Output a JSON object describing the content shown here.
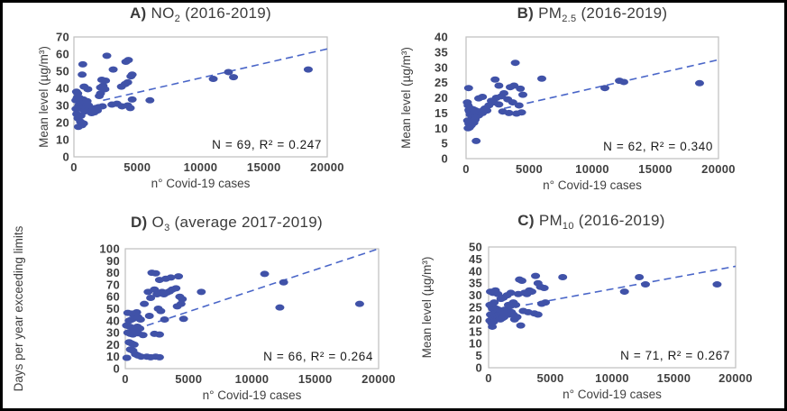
{
  "figure": {
    "description": "Four scatter plots of air pollutant levels versus number of Covid-19 cases"
  },
  "colors": {
    "point": "#4052a8",
    "trend": "#4a66c8",
    "plot_border": "#bfbfbf",
    "text": "#3f3f3f",
    "annotation": "#1a1a1a"
  },
  "chart_data": [
    {
      "type": "scatter",
      "id": "A",
      "title": {
        "prefix": "A)",
        "main": "NO",
        "sub": "2",
        "suffix": " (2016-2019)"
      },
      "xlabel": "n° Covid-19 cases",
      "ylabel": "Mean level (µg/m³)",
      "annotation": "N = 69, R² = 0.247",
      "n": 69,
      "r_squared": 0.247,
      "xlim": [
        0,
        20000
      ],
      "ylim": [
        0,
        70
      ],
      "xticks": [
        0,
        5000,
        10000,
        15000,
        20000
      ],
      "yticks": [
        0,
        10,
        20,
        30,
        40,
        50,
        60,
        70
      ],
      "trendline": {
        "style": "dashed",
        "x1": 2300,
        "y1": 33,
        "x2": 20000,
        "y2": 63
      },
      "points": [
        [
          11000,
          45.5
        ],
        [
          12200,
          49.5
        ],
        [
          12600,
          46.5
        ],
        [
          18500,
          51
        ],
        [
          6000,
          33
        ],
        [
          2600,
          59
        ],
        [
          700,
          54
        ],
        [
          4100,
          55.5
        ],
        [
          4300,
          56.5
        ],
        [
          3100,
          51
        ],
        [
          4600,
          48
        ],
        [
          650,
          48
        ],
        [
          2200,
          45
        ],
        [
          2500,
          44.5
        ],
        [
          4500,
          47
        ],
        [
          800,
          41
        ],
        [
          1100,
          39.5
        ],
        [
          2100,
          40.5
        ],
        [
          2300,
          41.5
        ],
        [
          3750,
          41
        ],
        [
          4050,
          42.5
        ],
        [
          4250,
          43.5
        ],
        [
          200,
          38
        ],
        [
          2450,
          39.5
        ],
        [
          2000,
          35.5
        ],
        [
          2100,
          37
        ],
        [
          4600,
          33.5
        ],
        [
          3400,
          31
        ],
        [
          3000,
          30.5
        ],
        [
          3800,
          29.5
        ],
        [
          4250,
          30
        ],
        [
          4450,
          28.5
        ],
        [
          150,
          33
        ],
        [
          250,
          34.5
        ],
        [
          300,
          37
        ],
        [
          380,
          30
        ],
        [
          420,
          34.5
        ],
        [
          460,
          31.5
        ],
        [
          500,
          29
        ],
        [
          540,
          32.5
        ],
        [
          580,
          30.5
        ],
        [
          620,
          28
        ],
        [
          680,
          31
        ],
        [
          740,
          33.5
        ],
        [
          800,
          29.5
        ],
        [
          860,
          26.5
        ],
        [
          920,
          31.5
        ],
        [
          980,
          28.5
        ],
        [
          1040,
          32.5
        ],
        [
          1100,
          27
        ],
        [
          1160,
          30
        ],
        [
          1240,
          28
        ],
        [
          1320,
          26.5
        ],
        [
          1400,
          25.5
        ],
        [
          1500,
          27.5
        ],
        [
          1600,
          26
        ],
        [
          1700,
          28.5
        ],
        [
          1850,
          27
        ],
        [
          1950,
          29
        ],
        [
          2250,
          29.5
        ],
        [
          160,
          28
        ],
        [
          220,
          25
        ],
        [
          320,
          22.5
        ],
        [
          420,
          23.5
        ],
        [
          520,
          20.5
        ],
        [
          560,
          24
        ],
        [
          640,
          18.5
        ],
        [
          760,
          19.5
        ],
        [
          350,
          17.5
        ]
      ]
    },
    {
      "type": "scatter",
      "id": "B",
      "title": {
        "prefix": "B)",
        "main": "PM",
        "sub": "2.5",
        "suffix": " (2016-2019)"
      },
      "xlabel": "n° Covid-19 cases",
      "ylabel": "Mean level (µg/m³)",
      "annotation": "N = 62, R² = 0.340",
      "n": 62,
      "r_squared": 0.34,
      "xlim": [
        0,
        20000
      ],
      "ylim": [
        0,
        40
      ],
      "xticks": [
        0,
        5000,
        10000,
        15000,
        20000
      ],
      "yticks": [
        0,
        5,
        10,
        15,
        20,
        25,
        30,
        35,
        40
      ],
      "trendline": {
        "style": "dashed",
        "x1": 3000,
        "y1": 16.5,
        "x2": 20000,
        "y2": 32.5
      },
      "points": [
        [
          11000,
          23.2
        ],
        [
          12150,
          25.6
        ],
        [
          12500,
          25.2
        ],
        [
          18500,
          24.8
        ],
        [
          6000,
          26.3
        ],
        [
          3900,
          31.5
        ],
        [
          2300,
          26
        ],
        [
          2600,
          24
        ],
        [
          3500,
          23.5
        ],
        [
          3800,
          24
        ],
        [
          4300,
          23
        ],
        [
          4500,
          21
        ],
        [
          3300,
          19.5
        ],
        [
          3700,
          18.5
        ],
        [
          4200,
          17.5
        ],
        [
          3000,
          21.5
        ],
        [
          2800,
          20.5
        ],
        [
          200,
          23.2
        ],
        [
          1000,
          19.8
        ],
        [
          1300,
          20.3
        ],
        [
          2000,
          19
        ],
        [
          2200,
          18.5
        ],
        [
          2400,
          20
        ],
        [
          2600,
          17.8
        ],
        [
          1800,
          17.5
        ],
        [
          3400,
          15
        ],
        [
          4000,
          14.8
        ],
        [
          4400,
          15.2
        ],
        [
          2900,
          15.5
        ],
        [
          1500,
          16.5
        ],
        [
          1650,
          15.8
        ],
        [
          100,
          18.5
        ],
        [
          160,
          17.5
        ],
        [
          220,
          16
        ],
        [
          270,
          15.5
        ],
        [
          320,
          14.5
        ],
        [
          370,
          16.5
        ],
        [
          420,
          15
        ],
        [
          470,
          13.5
        ],
        [
          520,
          14.8
        ],
        [
          570,
          16.2
        ],
        [
          620,
          13
        ],
        [
          670,
          15.5
        ],
        [
          720,
          14
        ],
        [
          770,
          15.8
        ],
        [
          820,
          13.8
        ],
        [
          900,
          15.2
        ],
        [
          1000,
          14.2
        ],
        [
          1100,
          15.5
        ],
        [
          1300,
          15
        ],
        [
          1400,
          16
        ],
        [
          120,
          12.5
        ],
        [
          220,
          11.5
        ],
        [
          320,
          12
        ],
        [
          420,
          11
        ],
        [
          520,
          12.2
        ],
        [
          620,
          11.8
        ],
        [
          720,
          12.8
        ],
        [
          260,
          10.2
        ],
        [
          360,
          10.8
        ],
        [
          160,
          10
        ],
        [
          800,
          5.8
        ]
      ]
    },
    {
      "type": "scatter",
      "id": "D",
      "title": {
        "prefix": "D)",
        "main": "O",
        "sub": "3",
        "suffix": " (average 2017-2019)"
      },
      "xlabel": "n° Covid-19 cases",
      "ylabel": "Days per year exceeding limits",
      "annotation": "N = 66, R² = 0.264",
      "n": 66,
      "r_squared": 0.264,
      "xlim": [
        0,
        20000
      ],
      "ylim": [
        0,
        100
      ],
      "xticks": [
        0,
        5000,
        10000,
        15000,
        20000
      ],
      "yticks": [
        0,
        10,
        20,
        30,
        40,
        50,
        60,
        70,
        80,
        90,
        100
      ],
      "trendline": {
        "style": "dashed",
        "x1": 1700,
        "y1": 36,
        "x2": 20000,
        "y2": 100
      },
      "points": [
        [
          11000,
          79
        ],
        [
          12500,
          72
        ],
        [
          12200,
          51
        ],
        [
          18500,
          54
        ],
        [
          6000,
          64
        ],
        [
          2100,
          80
        ],
        [
          2400,
          79.5
        ],
        [
          3600,
          76
        ],
        [
          4200,
          77
        ],
        [
          2700,
          74
        ],
        [
          3200,
          75
        ],
        [
          2900,
          64
        ],
        [
          3050,
          62
        ],
        [
          3300,
          63.5
        ],
        [
          3500,
          64.5
        ],
        [
          3700,
          66
        ],
        [
          4000,
          67
        ],
        [
          4300,
          60
        ],
        [
          4500,
          58
        ],
        [
          2300,
          66
        ],
        [
          2500,
          62
        ],
        [
          1800,
          64
        ],
        [
          2000,
          59
        ],
        [
          1500,
          54
        ],
        [
          4600,
          41.5
        ],
        [
          2600,
          50
        ],
        [
          2800,
          48
        ],
        [
          4100,
          52
        ],
        [
          4400,
          54
        ],
        [
          3100,
          41
        ],
        [
          1900,
          44
        ],
        [
          2300,
          29
        ],
        [
          2700,
          28.5
        ],
        [
          200,
          46.5
        ],
        [
          500,
          46
        ],
        [
          900,
          47
        ],
        [
          300,
          40
        ],
        [
          500,
          41
        ],
        [
          700,
          42
        ],
        [
          1000,
          43
        ],
        [
          1200,
          41
        ],
        [
          100,
          36
        ],
        [
          350,
          35
        ],
        [
          550,
          34
        ],
        [
          750,
          33
        ],
        [
          950,
          35
        ],
        [
          1150,
          33.5
        ],
        [
          200,
          30
        ],
        [
          400,
          29
        ],
        [
          600,
          28.5
        ],
        [
          800,
          31
        ],
        [
          1000,
          29.5
        ],
        [
          1400,
          28
        ],
        [
          300,
          22
        ],
        [
          500,
          21
        ],
        [
          700,
          20
        ],
        [
          400,
          16
        ],
        [
          600,
          15
        ],
        [
          800,
          12
        ],
        [
          1000,
          11
        ],
        [
          1250,
          10
        ],
        [
          120,
          9
        ],
        [
          1700,
          10
        ],
        [
          2000,
          9.5
        ],
        [
          2400,
          10
        ],
        [
          2700,
          9.5
        ]
      ]
    },
    {
      "type": "scatter",
      "id": "C",
      "title": {
        "prefix": "C)",
        "main": "PM",
        "sub": "10",
        "suffix": " (2016-2019)"
      },
      "xlabel": "n° Covid-19 cases",
      "ylabel": "Mean level (µg/m³)",
      "annotation": "N = 71, R² = 0.267",
      "n": 71,
      "r_squared": 0.267,
      "xlim": [
        0,
        20000
      ],
      "ylim": [
        0,
        50
      ],
      "xticks": [
        0,
        5000,
        10000,
        15000,
        20000
      ],
      "yticks": [
        0,
        5,
        10,
        15,
        20,
        25,
        30,
        35,
        40,
        45,
        50
      ],
      "trendline": {
        "style": "dashed",
        "x1": 3000,
        "y1": 26,
        "x2": 20000,
        "y2": 42
      },
      "points": [
        [
          11000,
          31.5
        ],
        [
          12200,
          37.5
        ],
        [
          12700,
          34.5
        ],
        [
          18500,
          34.5
        ],
        [
          6000,
          37.5
        ],
        [
          3800,
          38
        ],
        [
          4000,
          35
        ],
        [
          2500,
          36.5
        ],
        [
          2700,
          36
        ],
        [
          3300,
          32
        ],
        [
          3500,
          31.5
        ],
        [
          4200,
          33.5
        ],
        [
          4500,
          33
        ],
        [
          2900,
          31
        ],
        [
          3100,
          30.5
        ],
        [
          2400,
          30.5
        ],
        [
          4300,
          26.5
        ],
        [
          4600,
          27
        ],
        [
          3700,
          22.5
        ],
        [
          4000,
          22
        ],
        [
          2800,
          23.5
        ],
        [
          3200,
          23
        ],
        [
          2600,
          17.5
        ],
        [
          2000,
          27
        ],
        [
          2200,
          26
        ],
        [
          150,
          31.5
        ],
        [
          350,
          31
        ],
        [
          550,
          32
        ],
        [
          750,
          30.5
        ],
        [
          1500,
          30
        ],
        [
          1800,
          31
        ],
        [
          1000,
          28.5
        ],
        [
          1200,
          29
        ],
        [
          100,
          26
        ],
        [
          200,
          25.5
        ],
        [
          300,
          24.5
        ],
        [
          400,
          25
        ],
        [
          500,
          23.5
        ],
        [
          600,
          24.5
        ],
        [
          700,
          23
        ],
        [
          800,
          24
        ],
        [
          900,
          22.5
        ],
        [
          1000,
          23.5
        ],
        [
          1100,
          22
        ],
        [
          1200,
          23
        ],
        [
          1300,
          24
        ],
        [
          1400,
          22.5
        ],
        [
          1550,
          23.5
        ],
        [
          1700,
          22
        ],
        [
          1850,
          23
        ],
        [
          2000,
          22
        ],
        [
          150,
          22
        ],
        [
          250,
          21.5
        ],
        [
          350,
          20.5
        ],
        [
          450,
          21
        ],
        [
          550,
          20
        ],
        [
          650,
          21.5
        ],
        [
          750,
          20.5
        ],
        [
          850,
          21
        ],
        [
          950,
          20
        ],
        [
          1100,
          20.5
        ],
        [
          1250,
          21
        ],
        [
          100,
          19.5
        ],
        [
          250,
          18.5
        ],
        [
          400,
          19
        ],
        [
          300,
          17
        ],
        [
          2100,
          20
        ],
        [
          2300,
          21
        ],
        [
          1600,
          26
        ],
        [
          1750,
          25.5
        ],
        [
          450,
          27
        ]
      ]
    }
  ]
}
